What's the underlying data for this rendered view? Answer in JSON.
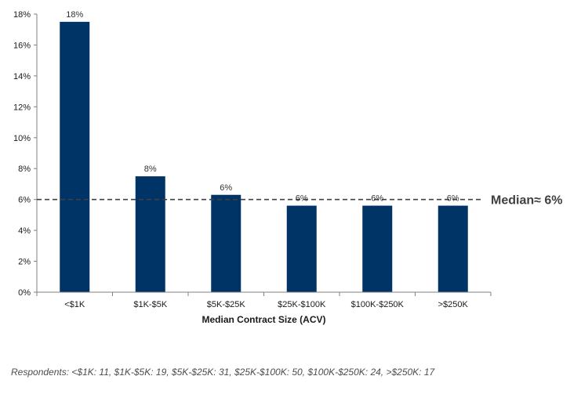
{
  "chart_data": {
    "type": "bar",
    "categories": [
      "<$1K",
      "$1K-$5K",
      "$5K-$25K",
      "$25K-$100K",
      "$100K-$250K",
      ">$250K"
    ],
    "values": [
      17.5,
      7.5,
      6.3,
      5.6,
      5.6,
      5.6
    ],
    "data_labels": [
      "18%",
      "8%",
      "6%",
      "6%",
      "6%",
      "6%"
    ],
    "xlabel": "Median Contract Size (ACV)",
    "ylabel": "",
    "ylim": [
      0,
      18
    ],
    "yticks": [
      0,
      2,
      4,
      6,
      8,
      10,
      12,
      14,
      16,
      18
    ],
    "ytick_labels": [
      "0%",
      "2%",
      "4%",
      "6%",
      "8%",
      "10%",
      "12%",
      "14%",
      "16%",
      "18%"
    ],
    "bar_color": "#003366",
    "grid": false,
    "reference_line": {
      "value": 6,
      "label": "Median≈ 6%",
      "style": "dashed",
      "color": "#404040"
    }
  },
  "footnote": "Respondents: <$1K: 11, $1K-$5K: 19, $5K-$25K: 31, $25K-$100K: 50, $100K-$250K: 24, >$250K: 17"
}
